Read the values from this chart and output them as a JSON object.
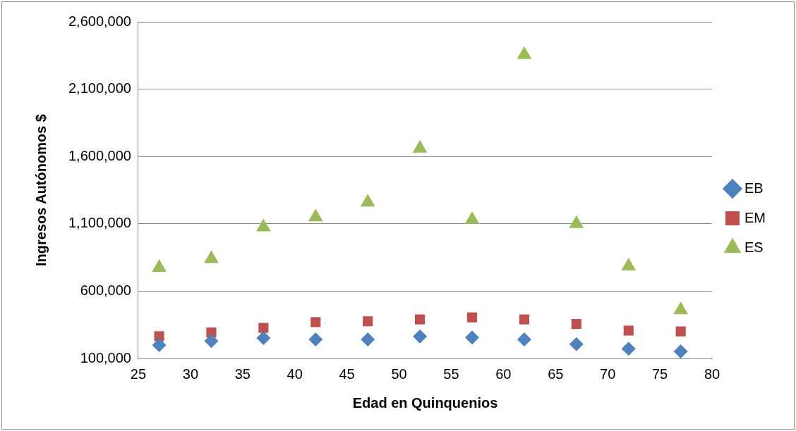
{
  "chart_data": {
    "type": "scatter",
    "xlabel": "Edad en Quinquenios",
    "ylabel": "Ingresos Autónomos $",
    "x": [
      27,
      32,
      37,
      42,
      47,
      52,
      57,
      62,
      67,
      72,
      77
    ],
    "series": [
      {
        "name": "EB",
        "color": "#4f81bd",
        "marker": "diamond",
        "values": [
          200000,
          230000,
          252000,
          241000,
          241000,
          264000,
          255000,
          241000,
          206000,
          172000,
          152000
        ]
      },
      {
        "name": "EM",
        "color": "#c0504d",
        "marker": "square",
        "values": [
          265000,
          293000,
          327000,
          370000,
          376000,
          390000,
          405000,
          390000,
          356000,
          307000,
          301000
        ]
      },
      {
        "name": "ES",
        "color": "#9bbb59",
        "marker": "triangle",
        "values": [
          775000,
          840000,
          1075000,
          1150000,
          1260000,
          1660000,
          1130000,
          2355000,
          1100000,
          785000,
          460000
        ]
      }
    ],
    "xlim": [
      25,
      80
    ],
    "xticks": [
      25,
      30,
      35,
      40,
      45,
      50,
      55,
      60,
      65,
      70,
      75,
      80
    ],
    "ylim": [
      100000,
      2600000
    ],
    "yticks": [
      {
        "value": 100000,
        "label": "100,000"
      },
      {
        "value": 600000,
        "label": "600,000"
      },
      {
        "value": 1100000,
        "label": "1,100,000"
      },
      {
        "value": 1600000,
        "label": "1,600,000"
      },
      {
        "value": 2100000,
        "label": "2,100,000"
      },
      {
        "value": 2600000,
        "label": "2,600,000"
      }
    ],
    "grid": "y",
    "legend": "right"
  }
}
